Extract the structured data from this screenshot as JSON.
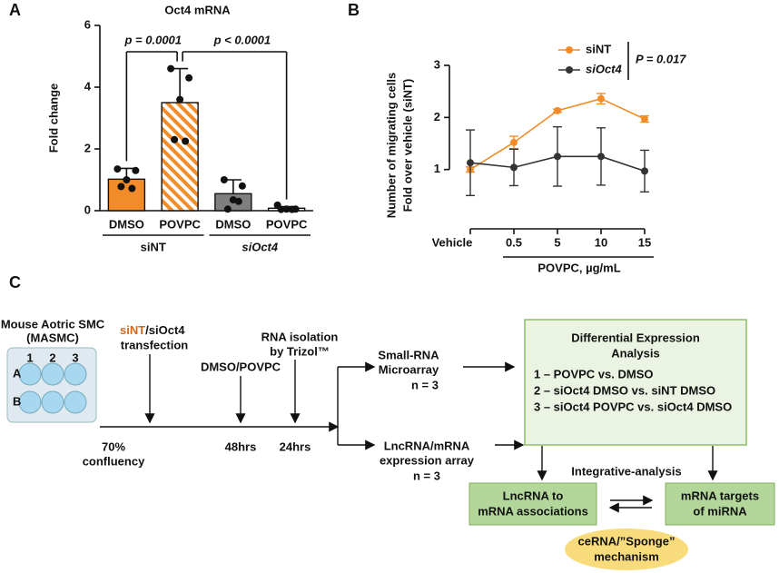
{
  "chart_data": [
    {
      "type": "bar",
      "panel": "A",
      "title": "Oct4 mRNA",
      "ylabel": "Fold change",
      "categories": [
        "DMSO",
        "POVPC",
        "DMSO",
        "POVPC"
      ],
      "groups": [
        {
          "name": "siNT",
          "span": [
            0,
            1
          ]
        },
        {
          "name": "siOct4",
          "span": [
            2,
            3
          ]
        }
      ],
      "values": [
        1.02,
        3.5,
        0.55,
        0.08
      ],
      "errors": [
        0.35,
        1.1,
        0.45,
        0.05
      ],
      "points": [
        [
          1.35,
          1.3,
          1.0,
          0.78,
          0.72
        ],
        [
          4.6,
          4.3,
          3.6,
          2.3,
          2.25
        ],
        [
          1.0,
          0.8,
          0.35,
          0.05,
          0.3
        ],
        [
          0.18,
          0.05,
          0.05,
          0.04,
          0.04
        ]
      ],
      "colors": [
        "#f28c28",
        "#f28c28",
        "#7f7f7f",
        "#ffffff"
      ],
      "hatch": [
        false,
        true,
        false,
        false
      ],
      "ylim": [
        0,
        6
      ],
      "yticks": [
        0,
        2,
        4,
        6
      ],
      "annotations": [
        "p = 0.0001",
        "p < 0.0001"
      ]
    },
    {
      "type": "line",
      "panel": "B",
      "ylabel": [
        "Number of migrating cells",
        "Fold over vehicle (siNT)"
      ],
      "xlabel": "POVPC, µg/mL",
      "categories": [
        "Vehicle",
        "0.5",
        "5",
        "10",
        "15"
      ],
      "series": [
        {
          "name": "siNT",
          "color": "#f28c28",
          "values": [
            1.0,
            1.52,
            2.13,
            2.36,
            1.97
          ],
          "errors": [
            0.05,
            0.12,
            0.03,
            0.1,
            0.06
          ]
        },
        {
          "name": "siOct4",
          "color": "#333333",
          "values": [
            1.13,
            1.04,
            1.25,
            1.25,
            0.97
          ],
          "errors": [
            0.63,
            0.35,
            0.57,
            0.55,
            0.4
          ]
        }
      ],
      "ylim": [
        0,
        3
      ],
      "yticks": [
        1,
        2,
        3
      ],
      "legend": "top-right",
      "annotation": "P = 0.017"
    }
  ],
  "diagram": {
    "panel": "C",
    "cells": [
      "Mouse Aotric SMC",
      "(MASMC)"
    ],
    "plate_cols": [
      "1",
      "2",
      "3"
    ],
    "plate_rows": [
      "A",
      "B"
    ],
    "transfection": [
      "siNT",
      "/siOct4",
      "transfection"
    ],
    "confluency": [
      "70%",
      "confluency"
    ],
    "treatment": "DMSO/POVPC",
    "isolation": [
      "RNA isolation",
      "by Trizol™"
    ],
    "times": [
      "48hrs",
      "24hrs"
    ],
    "small_rna": [
      "Small-RNA",
      "Microarray",
      "n = 3"
    ],
    "lnc_array": [
      "LncRNA/mRNA",
      "expression array",
      "n = 3"
    ],
    "analysis": {
      "title": [
        "Differential Expression",
        "Analysis"
      ],
      "items": [
        "1 – POVPC vs. DMSO",
        "2 – siOct4 DMSO vs. siNT DMSO",
        "3 – siOct4 POVPC vs. siOct4 DMSO"
      ]
    },
    "integrative": "Integrative-analysis",
    "lnc_box": [
      "LncRNA to",
      "mRNA associations"
    ],
    "mirna_box": [
      "mRNA targets",
      "of miRNA"
    ],
    "mechanism": [
      "ceRNA/”Sponge”",
      "mechanism"
    ]
  }
}
